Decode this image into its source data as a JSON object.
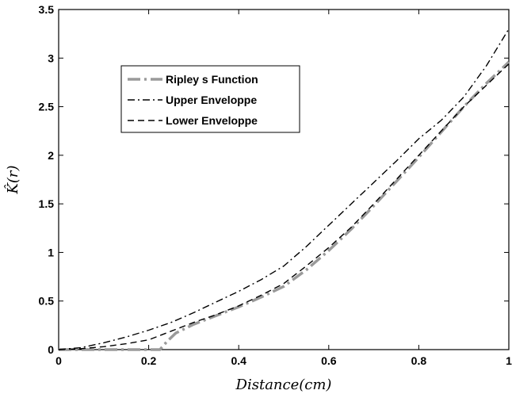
{
  "chart_data": {
    "type": "line",
    "xlabel": "Distance(cm)",
    "ylabel": "K̂(r)",
    "xlim": [
      0,
      1
    ],
    "ylim": [
      0,
      3.5
    ],
    "x_ticks": [
      "0",
      "0.2",
      "0.4",
      "0.6",
      "0.8",
      "1"
    ],
    "y_ticks": [
      "0",
      "0.5",
      "1",
      "1.5",
      "2",
      "2.5",
      "3",
      "3.5"
    ],
    "grid": false,
    "legend_position": "upper-left",
    "series": [
      {
        "name": "Ripley s Function",
        "style": "dash-dot-thick",
        "color": "#9a9a9a",
        "points": [
          [
            0,
            0
          ],
          [
            0.21,
            0
          ],
          [
            0.225,
            0
          ],
          [
            0.24,
            0.08
          ],
          [
            0.26,
            0.17
          ],
          [
            0.3,
            0.26
          ],
          [
            0.35,
            0.35
          ],
          [
            0.4,
            0.44
          ],
          [
            0.45,
            0.54
          ],
          [
            0.5,
            0.65
          ],
          [
            0.55,
            0.82
          ],
          [
            0.6,
            1.02
          ],
          [
            0.65,
            1.24
          ],
          [
            0.7,
            1.48
          ],
          [
            0.75,
            1.73
          ],
          [
            0.8,
            1.98
          ],
          [
            0.85,
            2.24
          ],
          [
            0.9,
            2.5
          ],
          [
            0.95,
            2.74
          ],
          [
            1.0,
            2.96
          ]
        ]
      },
      {
        "name": "Upper Enveloppe",
        "style": "dash-dot",
        "color": "#000000",
        "points": [
          [
            0,
            0
          ],
          [
            0.05,
            0.02
          ],
          [
            0.1,
            0.07
          ],
          [
            0.15,
            0.13
          ],
          [
            0.2,
            0.2
          ],
          [
            0.25,
            0.28
          ],
          [
            0.3,
            0.38
          ],
          [
            0.35,
            0.49
          ],
          [
            0.4,
            0.6
          ],
          [
            0.45,
            0.72
          ],
          [
            0.5,
            0.86
          ],
          [
            0.55,
            1.06
          ],
          [
            0.6,
            1.28
          ],
          [
            0.65,
            1.5
          ],
          [
            0.7,
            1.72
          ],
          [
            0.75,
            1.94
          ],
          [
            0.8,
            2.17
          ],
          [
            0.85,
            2.36
          ],
          [
            0.9,
            2.6
          ],
          [
            0.95,
            2.92
          ],
          [
            1.0,
            3.3
          ]
        ]
      },
      {
        "name": "Lower Enveloppe",
        "style": "dash",
        "color": "#000000",
        "points": [
          [
            0,
            0
          ],
          [
            0.05,
            0.01
          ],
          [
            0.1,
            0.03
          ],
          [
            0.15,
            0.06
          ],
          [
            0.2,
            0.1
          ],
          [
            0.25,
            0.19
          ],
          [
            0.3,
            0.28
          ],
          [
            0.35,
            0.36
          ],
          [
            0.4,
            0.45
          ],
          [
            0.45,
            0.56
          ],
          [
            0.5,
            0.68
          ],
          [
            0.55,
            0.86
          ],
          [
            0.6,
            1.05
          ],
          [
            0.65,
            1.26
          ],
          [
            0.7,
            1.5
          ],
          [
            0.75,
            1.75
          ],
          [
            0.8,
            2.0
          ],
          [
            0.85,
            2.25
          ],
          [
            0.9,
            2.5
          ],
          [
            0.95,
            2.72
          ],
          [
            1.0,
            2.94
          ]
        ]
      }
    ]
  }
}
